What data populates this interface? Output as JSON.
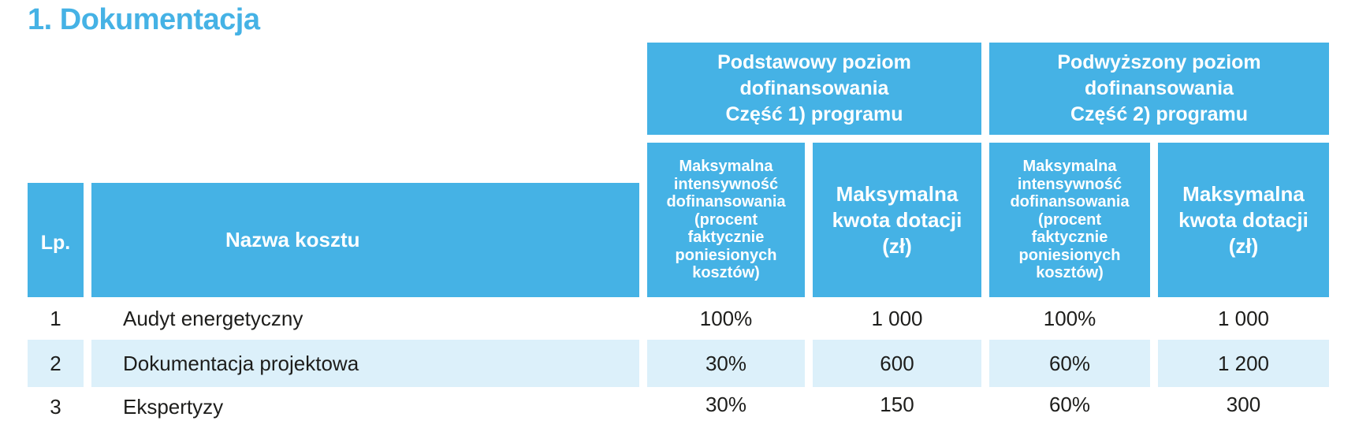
{
  "section_title": "1. Dokumentacja",
  "group_headers": [
    {
      "line1": "Podstawowy poziom",
      "line2": "dofinansowania",
      "line3": "Część 1) programu"
    },
    {
      "line1": "Podwyższony poziom",
      "line2": "dofinansowania",
      "line3": "Część 2) programu"
    }
  ],
  "columns": {
    "lp": "Lp.",
    "name": "Nazwa kosztu",
    "intensity_lines": [
      "Maksymalna",
      "intensywność",
      "dofinansowania",
      "(procent",
      "faktycznie",
      "poniesionych",
      "kosztów)"
    ],
    "amount_lines": [
      "Maksymalna",
      "kwota dotacji",
      "(zł)"
    ]
  },
  "rows": [
    {
      "lp": "1",
      "name": "Audyt energetyczny",
      "basic_intensity": "100%",
      "basic_amount": "1 000",
      "raised_intensity": "100%",
      "raised_amount": "1 000"
    },
    {
      "lp": "2",
      "name": "Dokumentacja projektowa",
      "basic_intensity": "30%",
      "basic_amount": "600",
      "raised_intensity": "60%",
      "raised_amount": "1 200"
    },
    {
      "lp": "3",
      "name": "Ekspertyzy",
      "basic_intensity": "30%",
      "basic_amount": "150",
      "raised_intensity": "60%",
      "raised_amount": "300"
    }
  ],
  "colors": {
    "header_blue": "#45b2e5",
    "row_shade": "#dcf0fa",
    "title_blue": "#45b2e5"
  }
}
